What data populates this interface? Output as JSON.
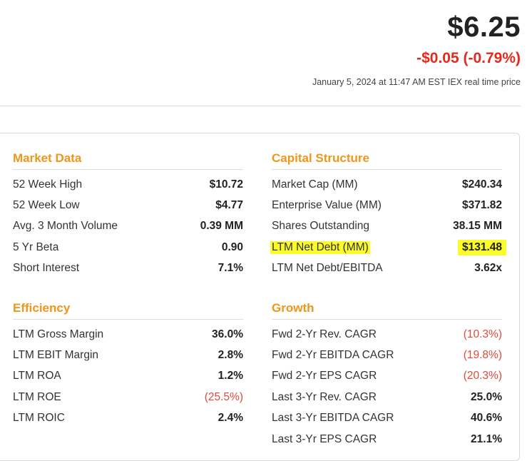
{
  "quote": {
    "price": "$6.25",
    "change": "-$0.05 (-0.79%)",
    "timestamp": "January 5, 2024 at 11:47 AM EST IEX real time price"
  },
  "market_data": {
    "title": "Market Data",
    "rows": [
      {
        "label": "52 Week High",
        "value": "$10.72"
      },
      {
        "label": "52 Week Low",
        "value": "$4.77"
      },
      {
        "label": "Avg. 3 Month Volume",
        "value": "0.39 MM"
      },
      {
        "label": "5 Yr Beta",
        "value": "0.90"
      },
      {
        "label": "Short Interest",
        "value": "7.1%"
      }
    ]
  },
  "capital_structure": {
    "title": "Capital Structure",
    "rows": [
      {
        "label": "Market Cap (MM)",
        "value": "$240.34"
      },
      {
        "label": "Enterprise Value (MM)",
        "value": "$371.82"
      },
      {
        "label": "Shares Outstanding",
        "value": "38.15 MM"
      },
      {
        "label": "LTM Net Debt (MM)",
        "value": "$131.48"
      },
      {
        "label": "LTM Net Debt/EBITDA",
        "value": "3.62x"
      }
    ]
  },
  "efficiency": {
    "title": "Efficiency",
    "rows": [
      {
        "label": "LTM Gross Margin",
        "value": "36.0%"
      },
      {
        "label": "LTM EBIT Margin",
        "value": "2.8%"
      },
      {
        "label": "LTM ROA",
        "value": "1.2%"
      },
      {
        "label": "LTM ROE",
        "value": "(25.5%)"
      },
      {
        "label": "LTM ROIC",
        "value": "2.4%"
      }
    ]
  },
  "growth": {
    "title": "Growth",
    "rows": [
      {
        "label": "Fwd 2-Yr Rev. CAGR",
        "value": "(10.3%)"
      },
      {
        "label": "Fwd 2-Yr EBITDA CAGR",
        "value": "(19.8%)"
      },
      {
        "label": "Fwd 2-Yr EPS CAGR",
        "value": "(20.3%)"
      },
      {
        "label": "Last 3-Yr Rev. CAGR",
        "value": "25.0%"
      },
      {
        "label": "Last 3-Yr EBITDA CAGR",
        "value": "40.6%"
      },
      {
        "label": "Last 3-Yr EPS CAGR",
        "value": "21.1%"
      }
    ]
  },
  "colors": {
    "section_title": "#f0961a",
    "price_change": "#e5291d",
    "negative_value": "#e04a3a",
    "highlight": "#fbfb2c"
  }
}
